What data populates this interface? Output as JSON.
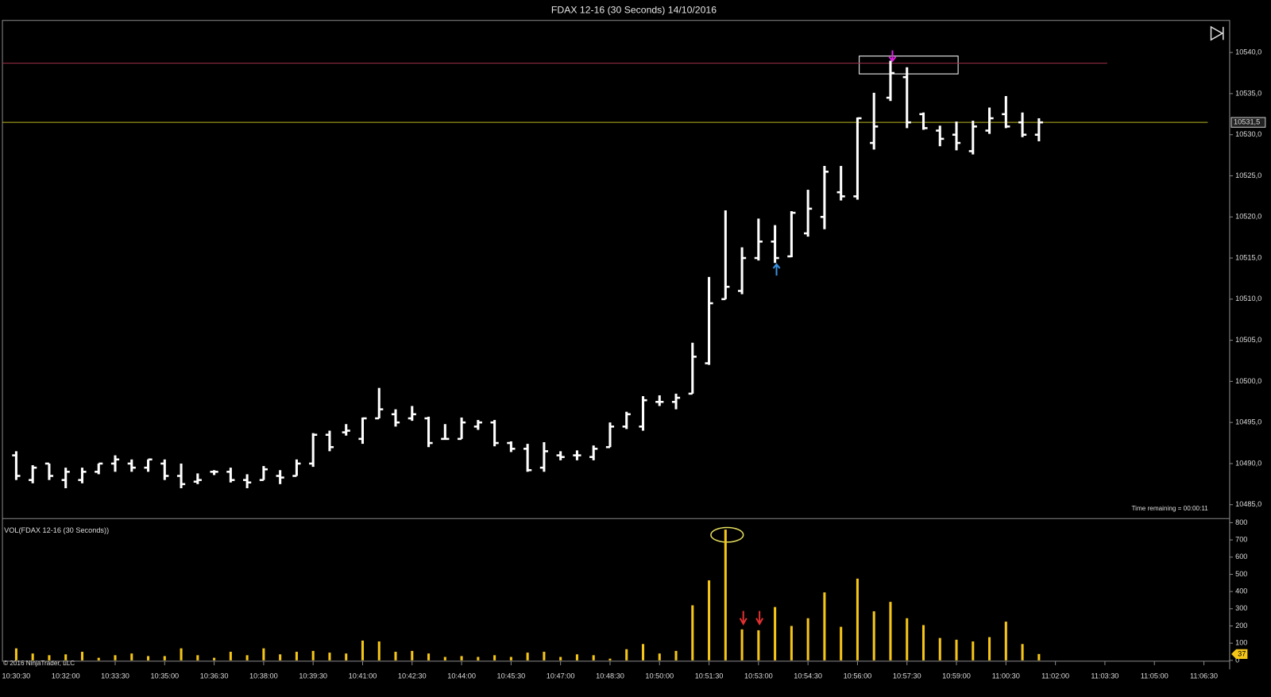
{
  "chart_data": [
    {
      "type": "ohlc",
      "title": "FDAX 12-16 (30 Seconds)  14/10/2016",
      "note": "Time remaining = 00:00:11",
      "copyright": "© 2016 NinjaTrader, LLC",
      "color": "#ffffff",
      "open": [
        10491,
        10488,
        10490,
        10488,
        10488,
        10489,
        10490,
        10490,
        10489.5,
        10490,
        10488.5,
        10487.8,
        10489,
        10489,
        10488,
        10488,
        10488.5,
        10488.5,
        10490,
        10493.5,
        10493.8,
        10493,
        10495.5,
        10496,
        10495.5,
        10495.5,
        10493,
        10493,
        10494.5,
        10495,
        10492.5,
        10491.8,
        10489.5,
        10491,
        10491,
        10490.8,
        10492,
        10494.5,
        10494.5,
        10497.5,
        10497.5,
        10498.5,
        10502.2,
        10510,
        10511,
        10515,
        10517,
        10515.2,
        10518,
        10520,
        10523,
        10522.5,
        10529,
        10534.5,
        10537,
        10532.5,
        10530.5,
        10530,
        10528,
        10530.5,
        10532.5,
        10531.5,
        10530,
        null,
        null,
        null,
        null,
        null,
        null,
        null,
        null,
        null,
        null
      ],
      "high": [
        10491.5,
        10489.8,
        10490,
        10489.5,
        10489.5,
        10490,
        10491,
        10490.5,
        10490.5,
        10490.5,
        10490,
        10488.8,
        10489.2,
        10489.5,
        10488.7,
        10489.7,
        10489.2,
        10490.5,
        10493.7,
        10494,
        10494.8,
        10495.6,
        10499.2,
        10496.6,
        10497,
        10495.7,
        10494.8,
        10495.6,
        10495.3,
        10495.3,
        10492.7,
        10492.4,
        10492.6,
        10491.5,
        10491.6,
        10492.2,
        10495,
        10496.3,
        10498.2,
        10498.3,
        10498.5,
        10504.7,
        10512.7,
        10520.8,
        10516.3,
        10519.8,
        10519,
        10520.7,
        10523.3,
        10526.2,
        10526.2,
        10532.1,
        10535.1,
        10539,
        10538.2,
        10532.7,
        10531.1,
        10531.6,
        10531.7,
        10533.3,
        10534.7,
        10532.7,
        10532,
        null,
        null,
        null,
        null,
        null,
        null,
        null,
        null,
        null,
        null
      ],
      "low": [
        10488,
        10487.6,
        10488,
        10487,
        10487.6,
        10488.7,
        10489,
        10489,
        10489,
        10488,
        10487,
        10487.5,
        10488.6,
        10487.7,
        10487,
        10488,
        10487.5,
        10488.5,
        10489.6,
        10491.5,
        10493.4,
        10492.4,
        10495.5,
        10494.5,
        10495.2,
        10492,
        10492.9,
        10493,
        10494.1,
        10492.1,
        10491.4,
        10489,
        10489,
        10490.4,
        10490.4,
        10490.4,
        10492,
        10494.2,
        10494,
        10497,
        10496.6,
        10498.5,
        10502,
        10510,
        10510.6,
        10514.7,
        10514.4,
        10515.1,
        10517.6,
        10518.5,
        10522,
        10522.1,
        10528.2,
        10534.1,
        10530.8,
        10530.6,
        10528.6,
        10528.1,
        10527.6,
        10530.1,
        10530.8,
        10529.7,
        10529.2,
        null,
        null,
        null,
        null,
        null,
        null,
        null,
        null,
        null,
        null
      ],
      "close": [
        10488.5,
        10489.5,
        10488.5,
        10489,
        10489,
        10490,
        10490.5,
        10489.5,
        10490.5,
        10488.5,
        10487.5,
        10488,
        10489,
        10488,
        10487.7,
        10489.3,
        10488.3,
        10490,
        10493.5,
        10492,
        10494,
        10495.5,
        10496.6,
        10495,
        10496,
        10492.5,
        10493,
        10495,
        10495,
        10492.5,
        10491.8,
        10489.2,
        10491.5,
        10490.8,
        10491,
        10491.8,
        10494.5,
        10496,
        10497.7,
        10497.5,
        10498,
        10503,
        10509.5,
        10511.5,
        10515,
        10517,
        10515,
        10520.5,
        10521,
        10525.5,
        10522.5,
        10532,
        10531,
        10537.5,
        10531.5,
        10530.8,
        10529.5,
        10529,
        10531,
        10532,
        10531,
        10530,
        10531.5,
        null,
        null,
        null,
        null,
        null,
        null,
        null,
        null,
        null,
        null
      ],
      "last_price": {
        "value": 10531.5,
        "label": "10531,5"
      },
      "high_line": 10538.7,
      "ylim": [
        10483.6,
        10543.9
      ],
      "yticks": [
        {
          "value": 10485,
          "label": "10485,0"
        },
        {
          "value": 10490,
          "label": "10490,0"
        },
        {
          "value": 10495,
          "label": "10495,0"
        },
        {
          "value": 10500,
          "label": "10500,0"
        },
        {
          "value": 10505,
          "label": "10505,0"
        },
        {
          "value": 10510,
          "label": "10510,0"
        },
        {
          "value": 10515,
          "label": "10515,0"
        },
        {
          "value": 10520,
          "label": "10520,0"
        },
        {
          "value": 10525,
          "label": "10525,0"
        },
        {
          "value": 10530,
          "label": "10530,0"
        },
        {
          "value": 10535,
          "label": "10535,0"
        },
        {
          "value": 10540,
          "label": "10540,0"
        }
      ]
    },
    {
      "type": "bar",
      "title": "VOL(FDAX 12-16 (30 Seconds))",
      "color": "#f5c518",
      "categories": [
        "10:30:30",
        null,
        null,
        "10:32:00",
        null,
        null,
        "10:33:30",
        null,
        null,
        "10:35:00",
        null,
        null,
        "10:36:30",
        null,
        null,
        "10:38:00",
        null,
        null,
        "10:39:30",
        null,
        null,
        "10:41:00",
        null,
        null,
        "10:42:30",
        null,
        null,
        "10:44:00",
        null,
        null,
        "10:45:30",
        null,
        null,
        "10:47:00",
        null,
        null,
        "10:48:30",
        null,
        null,
        "10:50:00",
        null,
        null,
        "10:51:30",
        null,
        null,
        "10:53:00",
        null,
        null,
        "10:54:30",
        null,
        null,
        "10:56:00",
        null,
        null,
        "10:57:30",
        null,
        null,
        "10:59:00",
        null,
        null,
        "11:00:30",
        null,
        null,
        "11:02:00",
        null,
        null,
        "11:03:30",
        null,
        null,
        "11:05:00",
        null,
        null,
        "11:06:30"
      ],
      "values": [
        70,
        40,
        30,
        35,
        50,
        15,
        30,
        40,
        25,
        25,
        70,
        30,
        15,
        50,
        30,
        70,
        35,
        50,
        55,
        45,
        40,
        115,
        110,
        50,
        55,
        40,
        20,
        25,
        20,
        30,
        20,
        45,
        50,
        20,
        35,
        30,
        10,
        65,
        95,
        40,
        55,
        320,
        465,
        760,
        180,
        175,
        310,
        200,
        245,
        395,
        195,
        475,
        285,
        340,
        245,
        205,
        130,
        120,
        110,
        135,
        225,
        95,
        37,
        null,
        null,
        null,
        null,
        null,
        null,
        null,
        null,
        null,
        null
      ],
      "ylim": [
        0,
        819
      ],
      "yticks": [
        0,
        100,
        200,
        300,
        400,
        500,
        600,
        700,
        800
      ]
    }
  ]
}
